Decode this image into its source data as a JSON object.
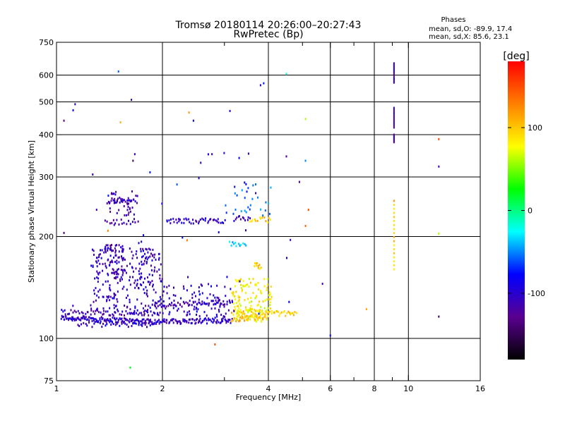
{
  "chart_data": {
    "type": "scatter",
    "title_line1": "Tromsø 20180114 20:26:00–20:27:43",
    "title_line2": "RwPretec (Bp)",
    "xlabel": "Frequency [MHz]",
    "ylabel": "Stationary phase Virtual Height [km]",
    "x_scale": "log",
    "y_scale": "log",
    "xlim": [
      1,
      16
    ],
    "ylim": [
      75,
      750
    ],
    "x_ticks": [
      1,
      2,
      4,
      6,
      8,
      10,
      16
    ],
    "x_tick_labels": [
      "1",
      "2",
      "4",
      "6",
      "8",
      "10",
      "16"
    ],
    "x_minor_ticks": [
      3,
      5,
      7,
      9
    ],
    "y_ticks": [
      75,
      100,
      200,
      300,
      400,
      500,
      600,
      750
    ],
    "y_tick_labels": [
      "75",
      "100",
      "200",
      "300",
      "400",
      "500",
      "600",
      "750"
    ],
    "grid": true,
    "legend": {
      "heading": "Phases",
      "line1": "mean, sd,O:  -89.9, 17.4",
      "line2": "mean, sd,X:  85.6, 23.1",
      "position": "top-right"
    },
    "colorbar": {
      "label": "[deg]",
      "range": [
        -180,
        180
      ],
      "ticks": [
        100,
        0,
        -100
      ],
      "tick_labels": [
        "100",
        "0",
        "-100"
      ],
      "stops": [
        "#000000",
        "#5a0090",
        "#0000ff",
        "#00ffff",
        "#00ff00",
        "#ffff00",
        "#ff8000",
        "#ff0000"
      ]
    },
    "traces": [
      {
        "kind": "curve",
        "f0": 1.03,
        "f1": 1.95,
        "h0": 115,
        "h1": 112,
        "phase": -105,
        "n": 140
      },
      {
        "kind": "curve",
        "f0": 1.95,
        "f1": 3.15,
        "h0": 112,
        "h1": 113,
        "phase": -105,
        "n": 90
      },
      {
        "kind": "curve",
        "f0": 1.03,
        "f1": 2.0,
        "h0": 120,
        "h1": 118,
        "phase": -110,
        "n": 60
      },
      {
        "kind": "curve",
        "f0": 1.15,
        "f1": 1.9,
        "h0": 110,
        "h1": 110,
        "phase": -100,
        "n": 40
      },
      {
        "kind": "curve",
        "f0": 1.9,
        "f1": 3.15,
        "h0": 125,
        "h1": 128,
        "phase": -110,
        "n": 60
      },
      {
        "kind": "curve",
        "f0": 3.15,
        "f1": 3.95,
        "h0": 114,
        "h1": 116,
        "phase": 105,
        "n": 45
      },
      {
        "kind": "curve",
        "f0": 3.15,
        "f1": 4.8,
        "h0": 120,
        "h1": 118,
        "phase": 95,
        "n": 55
      },
      {
        "kind": "curve",
        "f0": 1.4,
        "f1": 1.65,
        "h0": 255,
        "h1": 258,
        "phase": -110,
        "n": 25
      },
      {
        "kind": "curve",
        "f0": 1.38,
        "f1": 1.7,
        "h0": 220,
        "h1": 222,
        "phase": -110,
        "n": 18
      },
      {
        "kind": "curve",
        "f0": 2.05,
        "f1": 3.0,
        "h0": 222,
        "h1": 223,
        "phase": -100,
        "n": 45
      },
      {
        "kind": "curve",
        "f0": 3.2,
        "f1": 3.55,
        "h0": 226,
        "h1": 226,
        "phase": -110,
        "n": 12
      },
      {
        "kind": "curve",
        "f0": 3.55,
        "f1": 4.05,
        "h0": 224,
        "h1": 224,
        "phase": 100,
        "n": 14
      },
      {
        "kind": "curve",
        "f0": 3.1,
        "f1": 3.45,
        "h0": 190,
        "h1": 190,
        "phase": -40,
        "n": 12
      },
      {
        "kind": "curve",
        "f0": 3.65,
        "f1": 3.8,
        "h0": 165,
        "h1": 163,
        "phase": 95,
        "n": 10
      }
    ],
    "clouds": [
      {
        "f0": 1.25,
        "f1": 2.0,
        "h0": 118,
        "h1": 185,
        "phase": -105,
        "n": 260
      },
      {
        "f0": 1.35,
        "f1": 1.55,
        "h0": 150,
        "h1": 190,
        "phase": -110,
        "n": 60
      },
      {
        "f0": 2.0,
        "f1": 3.2,
        "h0": 115,
        "h1": 145,
        "phase": -100,
        "n": 90
      },
      {
        "f0": 3.15,
        "f1": 4.1,
        "h0": 112,
        "h1": 150,
        "phase": 80,
        "n": 130
      },
      {
        "f0": 1.4,
        "f1": 1.7,
        "h0": 230,
        "h1": 272,
        "phase": -110,
        "n": 40
      },
      {
        "f0": 3.0,
        "f1": 4.1,
        "h0": 230,
        "h1": 290,
        "phase": -60,
        "n": 30
      },
      {
        "f0": 1.03,
        "f1": 5.0,
        "h0": 100,
        "h1": 620,
        "phase": -90,
        "n": 40
      }
    ],
    "columns": [
      {
        "f": 9.1,
        "h0": 380,
        "h1": 400,
        "phase": -110,
        "n": 8
      },
      {
        "f": 9.1,
        "h0": 420,
        "h1": 480,
        "phase": -110,
        "n": 12
      },
      {
        "f": 9.1,
        "h0": 570,
        "h1": 650,
        "phase": -110,
        "n": 14
      },
      {
        "f": 9.1,
        "h0": 160,
        "h1": 255,
        "phase": 100,
        "n": 18
      }
    ],
    "points": [
      {
        "f": 1.5,
        "h": 615,
        "phase": -60
      },
      {
        "f": 1.52,
        "h": 435,
        "phase": 110
      },
      {
        "f": 1.65,
        "h": 335,
        "phase": -140
      },
      {
        "f": 2.45,
        "h": 440,
        "phase": -80
      },
      {
        "f": 2.38,
        "h": 465,
        "phase": 120
      },
      {
        "f": 2.7,
        "h": 350,
        "phase": -90
      },
      {
        "f": 2.2,
        "h": 285,
        "phase": -60
      },
      {
        "f": 3.8,
        "h": 560,
        "phase": -100
      },
      {
        "f": 4.5,
        "h": 605,
        "phase": -20
      },
      {
        "f": 4.5,
        "h": 345,
        "phase": -120
      },
      {
        "f": 5.1,
        "h": 445,
        "phase": 60
      },
      {
        "f": 5.1,
        "h": 335,
        "phase": -50
      },
      {
        "f": 4.9,
        "h": 290,
        "phase": -110
      },
      {
        "f": 5.2,
        "h": 240,
        "phase": 150
      },
      {
        "f": 5.1,
        "h": 215,
        "phase": 140
      },
      {
        "f": 5.7,
        "h": 145,
        "phase": -110
      },
      {
        "f": 6.0,
        "h": 102,
        "phase": -80
      },
      {
        "f": 7.6,
        "h": 122,
        "phase": 110
      },
      {
        "f": 12.2,
        "h": 388,
        "phase": 150
      },
      {
        "f": 12.2,
        "h": 322,
        "phase": -110
      },
      {
        "f": 12.2,
        "h": 204,
        "phase": 60
      },
      {
        "f": 12.2,
        "h": 116,
        "phase": -150
      },
      {
        "f": 1.62,
        "h": 82,
        "phase": 20
      },
      {
        "f": 2.82,
        "h": 96,
        "phase": 150
      },
      {
        "f": 1.05,
        "h": 205,
        "phase": -140
      },
      {
        "f": 1.05,
        "h": 440,
        "phase": -130
      },
      {
        "f": 1.3,
        "h": 240,
        "phase": -110
      },
      {
        "f": 1.4,
        "h": 208,
        "phase": 130
      },
      {
        "f": 2.35,
        "h": 195,
        "phase": 130
      }
    ]
  }
}
